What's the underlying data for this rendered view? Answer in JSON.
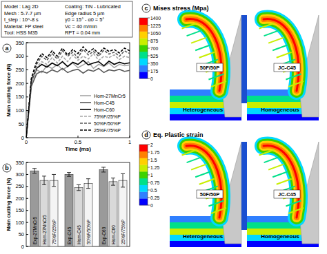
{
  "parameters": [
    "Model : Lag 2D",
    "Mesh : 5-7-7 µm",
    "t_step : 10^-8 s",
    "Material: FP steel",
    "Tool: HSS M35",
    "Coating: TiN - Lubricated",
    "Edge radius 5 µm",
    "γ0 = 15° - α0 = 5°",
    "Vc = 40 m/min",
    "RPT = 0.04 mm"
  ],
  "chart_data": [
    {
      "type": "line",
      "panel": "a",
      "x_label": "Time (ms)",
      "y_label": "Main cutting force (N)",
      "xlim": [
        0,
        1
      ],
      "xticks": [
        0,
        0.5,
        1
      ],
      "ylim": [
        0,
        350
      ],
      "yticks": [
        0,
        50,
        100,
        150,
        200,
        250,
        300,
        350
      ],
      "grid": false,
      "legend": "lower right",
      "x": [
        0,
        0.05,
        0.1,
        0.15,
        0.2,
        0.25,
        0.3,
        0.35,
        0.4,
        0.45,
        0.5,
        0.55,
        0.6,
        0.65,
        0.7,
        0.75,
        0.8,
        0.85,
        0.9,
        0.95,
        1
      ],
      "series": [
        {
          "name": "Hom-27MnCr5",
          "color": "#a6a6a6",
          "line_style": "solid",
          "values": [
            0,
            200,
            250,
            240,
            265,
            255,
            270,
            250,
            262,
            275,
            258,
            268,
            280,
            255,
            270,
            262,
            275,
            258,
            270,
            265,
            268
          ]
        },
        {
          "name": "Hom-C45",
          "color": "#595959",
          "line_style": "solid",
          "values": [
            0,
            190,
            235,
            245,
            238,
            250,
            242,
            255,
            240,
            248,
            252,
            238,
            250,
            245,
            255,
            240,
            250,
            246,
            252,
            244,
            248
          ]
        },
        {
          "name": "Hom-C60",
          "color": "#000000",
          "line_style": "solid",
          "values": [
            0,
            210,
            255,
            270,
            260,
            275,
            265,
            280,
            262,
            278,
            270,
            285,
            268,
            275,
            280,
            265,
            282,
            270,
            278,
            272,
            276
          ]
        },
        {
          "name": "75%F/25%P",
          "color": "#a6a6a6",
          "line_style": "dashed",
          "values": [
            0,
            205,
            260,
            280,
            270,
            295,
            275,
            300,
            280,
            305,
            285,
            300,
            290,
            310,
            285,
            300,
            295,
            305,
            288,
            300,
            295
          ]
        },
        {
          "name": "50%F/50%P",
          "color": "#595959",
          "line_style": "dashed",
          "values": [
            0,
            215,
            270,
            300,
            285,
            310,
            290,
            320,
            300,
            315,
            295,
            325,
            305,
            318,
            300,
            322,
            308,
            315,
            300,
            320,
            310
          ]
        },
        {
          "name": "25%F/75%P",
          "color": "#000000",
          "line_style": "dashed",
          "values": [
            0,
            220,
            280,
            310,
            295,
            320,
            300,
            330,
            305,
            325,
            310,
            335,
            315,
            328,
            310,
            330,
            318,
            325,
            312,
            330,
            320
          ]
        }
      ]
    },
    {
      "type": "bar",
      "panel": "b",
      "y_label": "Main cutting force (N)",
      "ylim": [
        0,
        350
      ],
      "yticks": [
        0,
        50,
        100,
        150,
        200,
        250,
        300,
        350
      ],
      "grid": false,
      "categories": [
        "Exp-27MnCr5",
        "Hom-27MnCr5",
        "75%F/25%P",
        "Exp-C45",
        "Hom-C45",
        "50%F/50%P",
        "Exp-C60",
        "Hom-C60",
        "25%F/75%P"
      ],
      "values": [
        315,
        275,
        275,
        300,
        245,
        262,
        320,
        270,
        275
      ],
      "errors": [
        10,
        18,
        25,
        8,
        12,
        20,
        10,
        15,
        28
      ],
      "colors": [
        "#9a9a9a",
        "#d9d9d9",
        "#f4f4f4",
        "#9a9a9a",
        "#d9d9d9",
        "#f4f4f4",
        "#9a9a9a",
        "#d9d9d9",
        "#f4f4f4"
      ]
    },
    {
      "type": "contour",
      "panel": "c",
      "title": "Mises stress (Mpa)",
      "colorbar_range": [
        0,
        1400
      ],
      "colorbar_ticks": [
        0,
        175,
        350,
        525,
        700,
        875,
        1050,
        1225,
        1400
      ],
      "colors": [
        "#0000ff",
        "#2f7fff",
        "#00d8ff",
        "#00e08a",
        "#3cd200",
        "#c8ee00",
        "#ffd000",
        "#ff8000",
        "#ff0000"
      ],
      "labels": [
        "50F/50P",
        "JC-C45"
      ],
      "captions": [
        "Heterogeneous",
        "Homogeneous"
      ]
    },
    {
      "type": "contour",
      "panel": "d",
      "title": "Eq. Plastic strain",
      "colorbar_range": [
        0,
        2
      ],
      "colorbar_ticks": [
        0,
        0.25,
        0.5,
        0.75,
        1,
        1.25,
        1.5,
        1.75,
        2
      ],
      "colors": [
        "#0000ff",
        "#2f7fff",
        "#00d8ff",
        "#00e08a",
        "#3cd200",
        "#c8ee00",
        "#ffd000",
        "#ff8000",
        "#ff0000"
      ],
      "labels": [
        "50F/50P",
        "JC-C45"
      ],
      "captions": [
        "Heterogeneous",
        "Homogeneous"
      ]
    }
  ]
}
